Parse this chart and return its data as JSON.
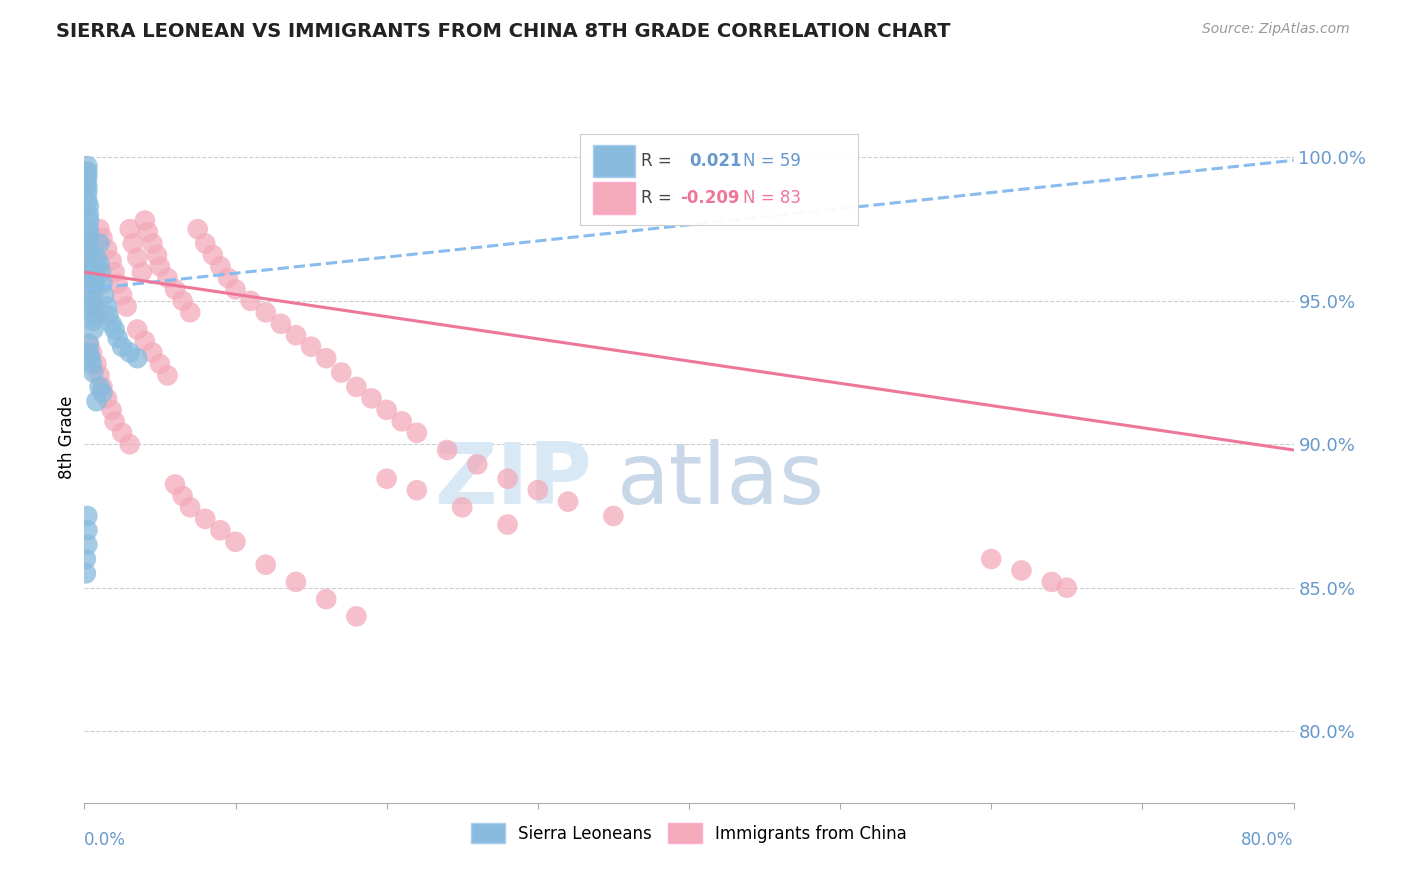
{
  "title": "SIERRA LEONEAN VS IMMIGRANTS FROM CHINA 8TH GRADE CORRELATION CHART",
  "source_text": "Source: ZipAtlas.com",
  "ylabel": "8th Grade",
  "y_tick_labels": [
    "80.0%",
    "85.0%",
    "90.0%",
    "95.0%",
    "100.0%"
  ],
  "y_tick_values": [
    0.8,
    0.85,
    0.9,
    0.95,
    1.0
  ],
  "x_range": [
    0.0,
    0.8
  ],
  "y_range": [
    0.775,
    1.03
  ],
  "blue_color": "#88BBDD",
  "pink_color": "#F4AABB",
  "blue_line_color": "#88BBEE",
  "pink_line_color": "#EE7799",
  "axis_label_color": "#6699CC",
  "watermark_color": "#D8E8F4",
  "blue_scatter_x": [
    0.001,
    0.001,
    0.001,
    0.002,
    0.002,
    0.002,
    0.002,
    0.002,
    0.002,
    0.003,
    0.003,
    0.003,
    0.003,
    0.003,
    0.003,
    0.004,
    0.004,
    0.004,
    0.004,
    0.004,
    0.005,
    0.005,
    0.005,
    0.005,
    0.006,
    0.006,
    0.006,
    0.007,
    0.007,
    0.008,
    0.008,
    0.01,
    0.01,
    0.011,
    0.012,
    0.013,
    0.015,
    0.016,
    0.018,
    0.02,
    0.022,
    0.025,
    0.03,
    0.035,
    0.01,
    0.012,
    0.008,
    0.003,
    0.003,
    0.004,
    0.005,
    0.006,
    0.002,
    0.002,
    0.002,
    0.001,
    0.001
  ],
  "blue_scatter_y": [
    0.995,
    0.993,
    0.991,
    0.997,
    0.995,
    0.993,
    0.99,
    0.988,
    0.985,
    0.983,
    0.98,
    0.978,
    0.975,
    0.973,
    0.97,
    0.968,
    0.965,
    0.962,
    0.96,
    0.958,
    0.956,
    0.953,
    0.95,
    0.948,
    0.945,
    0.943,
    0.94,
    0.96,
    0.955,
    0.965,
    0.958,
    0.97,
    0.963,
    0.96,
    0.956,
    0.952,
    0.948,
    0.945,
    0.942,
    0.94,
    0.937,
    0.934,
    0.932,
    0.93,
    0.92,
    0.918,
    0.915,
    0.935,
    0.932,
    0.93,
    0.928,
    0.925,
    0.875,
    0.87,
    0.865,
    0.86,
    0.855
  ],
  "pink_scatter_x": [
    0.001,
    0.002,
    0.003,
    0.004,
    0.005,
    0.006,
    0.007,
    0.008,
    0.01,
    0.012,
    0.015,
    0.018,
    0.02,
    0.022,
    0.025,
    0.028,
    0.03,
    0.032,
    0.035,
    0.038,
    0.04,
    0.042,
    0.045,
    0.048,
    0.05,
    0.055,
    0.06,
    0.065,
    0.07,
    0.075,
    0.08,
    0.085,
    0.09,
    0.095,
    0.1,
    0.11,
    0.12,
    0.13,
    0.14,
    0.15,
    0.16,
    0.17,
    0.18,
    0.19,
    0.2,
    0.21,
    0.22,
    0.24,
    0.26,
    0.28,
    0.3,
    0.32,
    0.35,
    0.003,
    0.005,
    0.008,
    0.01,
    0.012,
    0.015,
    0.018,
    0.02,
    0.025,
    0.03,
    0.035,
    0.04,
    0.045,
    0.05,
    0.055,
    0.06,
    0.065,
    0.07,
    0.08,
    0.09,
    0.1,
    0.12,
    0.14,
    0.16,
    0.18,
    0.2,
    0.22,
    0.25,
    0.28,
    0.6,
    0.62,
    0.64,
    0.65
  ],
  "pink_scatter_y": [
    0.97,
    0.967,
    0.963,
    0.96,
    0.956,
    0.952,
    0.948,
    0.945,
    0.975,
    0.972,
    0.968,
    0.964,
    0.96,
    0.956,
    0.952,
    0.948,
    0.975,
    0.97,
    0.965,
    0.96,
    0.978,
    0.974,
    0.97,
    0.966,
    0.962,
    0.958,
    0.954,
    0.95,
    0.946,
    0.975,
    0.97,
    0.966,
    0.962,
    0.958,
    0.954,
    0.95,
    0.946,
    0.942,
    0.938,
    0.934,
    0.93,
    0.925,
    0.92,
    0.916,
    0.912,
    0.908,
    0.904,
    0.898,
    0.893,
    0.888,
    0.884,
    0.88,
    0.875,
    0.935,
    0.932,
    0.928,
    0.924,
    0.92,
    0.916,
    0.912,
    0.908,
    0.904,
    0.9,
    0.94,
    0.936,
    0.932,
    0.928,
    0.924,
    0.886,
    0.882,
    0.878,
    0.874,
    0.87,
    0.866,
    0.858,
    0.852,
    0.846,
    0.84,
    0.888,
    0.884,
    0.878,
    0.872,
    0.86,
    0.856,
    0.852,
    0.85
  ],
  "blue_trend_x": [
    0.0,
    0.8
  ],
  "blue_trend_y": [
    0.954,
    0.999
  ],
  "pink_trend_x": [
    0.0,
    0.8
  ],
  "pink_trend_y": [
    0.96,
    0.898
  ]
}
